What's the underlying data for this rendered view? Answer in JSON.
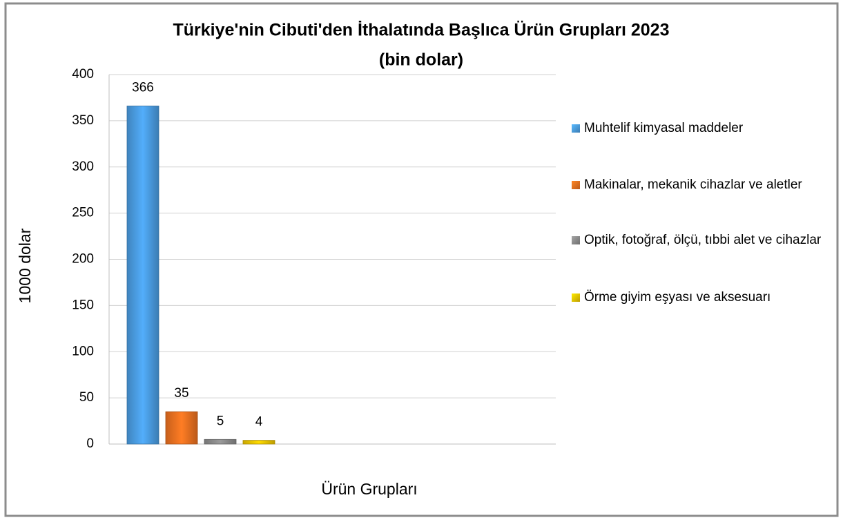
{
  "chart_data": {
    "type": "bar",
    "title": [
      "Türkiye'nin Cibuti'den İthalatında Başlıca Ürün Grupları 2023",
      "(bin dolar)"
    ],
    "x_label": "Ürün Grupları",
    "y_label": "1000 dolar",
    "series": [
      {
        "name": "Muhtelif kimyasal maddeler",
        "color": "#4a9be0",
        "values": [
          366
        ]
      },
      {
        "name": "Makinalar, mekanik cihazlar ve aletler",
        "color": "#ea7020",
        "values": [
          35
        ]
      },
      {
        "name": "Optik, fotoğraf, ölçü, tıbbi alet ve cihazlar",
        "color": "#8a8a8a",
        "values": [
          5
        ]
      },
      {
        "name": "Örme giyim eşyası ve aksesuarı",
        "color": "#eec400",
        "values": [
          4
        ]
      }
    ],
    "ylim": [
      0,
      400
    ],
    "yticks": [
      0,
      50,
      100,
      150,
      200,
      250,
      300,
      350,
      400
    ],
    "grid": true,
    "legend": "right"
  }
}
